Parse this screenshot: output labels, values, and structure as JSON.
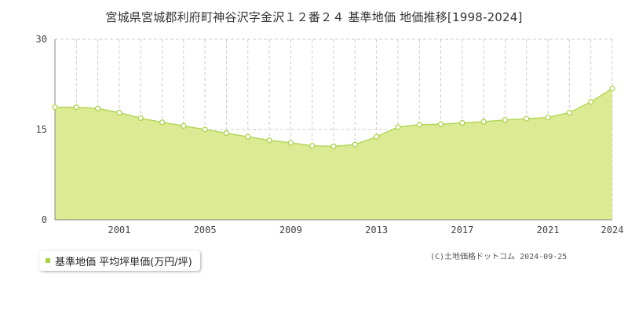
{
  "chart_data": {
    "type": "area",
    "title": "宮城県宮城郡利府町神谷沢字金沢１２番２４ 基準地価 地価推移[1998-2024]",
    "x": [
      1998,
      1999,
      2000,
      2001,
      2002,
      2003,
      2004,
      2005,
      2006,
      2007,
      2008,
      2009,
      2010,
      2011,
      2012,
      2013,
      2014,
      2015,
      2016,
      2017,
      2018,
      2019,
      2020,
      2021,
      2022,
      2023,
      2024
    ],
    "series": [
      {
        "name": "基準地価 平均坪単価(万円/坪)",
        "values": [
          18.7,
          18.7,
          18.5,
          17.8,
          16.9,
          16.2,
          15.6,
          15.0,
          14.4,
          13.8,
          13.2,
          12.8,
          12.3,
          12.2,
          12.5,
          13.8,
          15.4,
          15.8,
          15.9,
          16.1,
          16.3,
          16.6,
          16.8,
          17.0,
          17.8,
          19.6,
          21.8
        ]
      }
    ],
    "xticks": [
      "2001",
      "2005",
      "2009",
      "2013",
      "2017",
      "2021",
      "2024"
    ],
    "yticks": [
      "0",
      "15",
      "30"
    ],
    "xlim": [
      1998,
      2024
    ],
    "ylim": [
      0,
      30
    ],
    "xlabel": "",
    "ylabel": "",
    "grid": true,
    "legend_position": "bottom-left",
    "colors": {
      "fill": "#dcea94",
      "line": "#b5d65a",
      "marker": "#a8d040",
      "grid": "#cccccc",
      "axis": "#888888"
    }
  },
  "legend": {
    "label": "基準地価 平均坪単価(万円/坪)"
  },
  "footer": {
    "copyright": "(C)土地価格ドットコム 2024-09-25"
  }
}
